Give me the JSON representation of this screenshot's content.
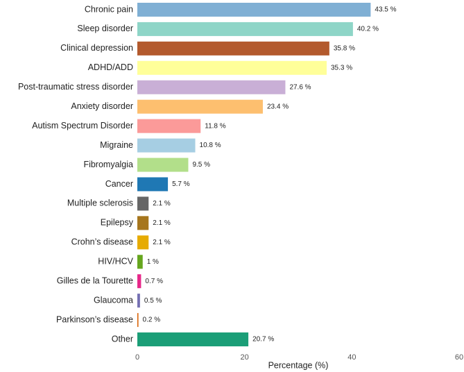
{
  "chart_data": {
    "type": "hbar",
    "categories": [
      "Chronic pain",
      "Sleep disorder",
      "Clinical depression",
      "ADHD/ADD",
      "Post-traumatic stress disorder",
      "Anxiety disorder",
      "Autism Spectrum Disorder",
      "Migraine",
      "Fibromyalgia",
      "Cancer",
      "Multiple sclerosis",
      "Epilepsy",
      "Crohn’s disease",
      "HIV/HCV",
      "Gilles de la Tourette",
      "Glaucoma",
      "Parkinson’s disease",
      "Other"
    ],
    "values": [
      43.5,
      40.2,
      35.8,
      35.3,
      27.6,
      23.4,
      11.8,
      10.8,
      9.5,
      5.7,
      2.1,
      2.1,
      2.1,
      1,
      0.7,
      0.5,
      0.2,
      20.7
    ],
    "value_labels": [
      "43.5 %",
      "40.2 %",
      "35.8 %",
      "35.3 %",
      "27.6 %",
      "23.4 %",
      "11.8 %",
      "10.8 %",
      "9.5 %",
      "5.7 %",
      "2.1 %",
      "2.1 %",
      "2.1 %",
      "1 %",
      "0.7 %",
      "0.5 %",
      "0.2 %",
      "20.7 %"
    ],
    "colors": [
      "#7fafd4",
      "#8ed5c7",
      "#b35a2d",
      "#ffff99",
      "#c9afd6",
      "#fdbf6f",
      "#fb9a99",
      "#a6cee3",
      "#b2df8a",
      "#1f78b4",
      "#666666",
      "#a6761d",
      "#e6ab02",
      "#66a61e",
      "#e7298a",
      "#7570b3",
      "#d95f02",
      "#1b9e77"
    ],
    "xlabel": "Percentage (%)",
    "xlim": [
      0,
      60
    ],
    "xticks": [
      0,
      20,
      40,
      60
    ]
  }
}
